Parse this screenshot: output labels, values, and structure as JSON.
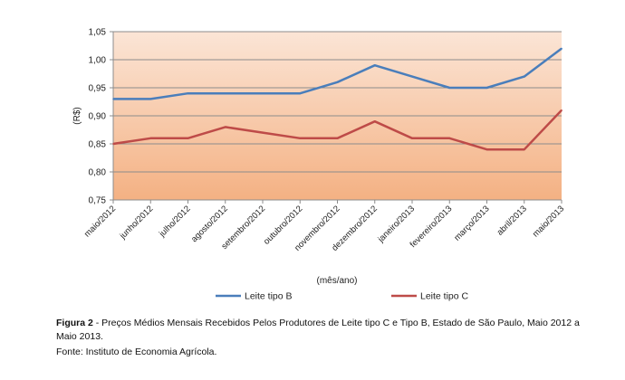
{
  "chart_data": {
    "type": "line",
    "categories": [
      "maio/2012",
      "junho/2012",
      "julho/2012",
      "agosto/2012",
      "setembro/2012",
      "outubro/2012",
      "novembro/2012",
      "dezembro/2012",
      "janeiro/2013",
      "fevereiro/2013",
      "março/2013",
      "abril/2013",
      "maio/2013"
    ],
    "series": [
      {
        "name": "Leite tipo B",
        "color": "#4a7ebb",
        "values": [
          0.93,
          0.93,
          0.94,
          0.94,
          0.94,
          0.94,
          0.96,
          0.99,
          0.97,
          0.95,
          0.95,
          0.97,
          1.02
        ]
      },
      {
        "name": "Leite tipo C",
        "color": "#be4b48",
        "values": [
          0.85,
          0.86,
          0.86,
          0.88,
          0.87,
          0.86,
          0.86,
          0.89,
          0.86,
          0.86,
          0.84,
          0.84,
          0.91
        ]
      }
    ],
    "ylabel": "(R$)",
    "xlabel": "(mês/ano)",
    "ylim": [
      0.75,
      1.05
    ],
    "yticks": [
      "0,75",
      "0,80",
      "0,85",
      "0,90",
      "0,95",
      "1,00",
      "1,05"
    ],
    "grid": true,
    "legend": "bottom",
    "background_gradient": [
      "#fbe5d6",
      "#f4b183"
    ]
  },
  "caption": {
    "label": "Figura 2",
    "text": " - Preços Médios Mensais Recebidos Pelos Produtores de Leite tipo C e Tipo B, Estado de São Paulo, Maio 2012 a Maio 2013."
  },
  "source": "Fonte: Instituto de Economia Agrícola."
}
